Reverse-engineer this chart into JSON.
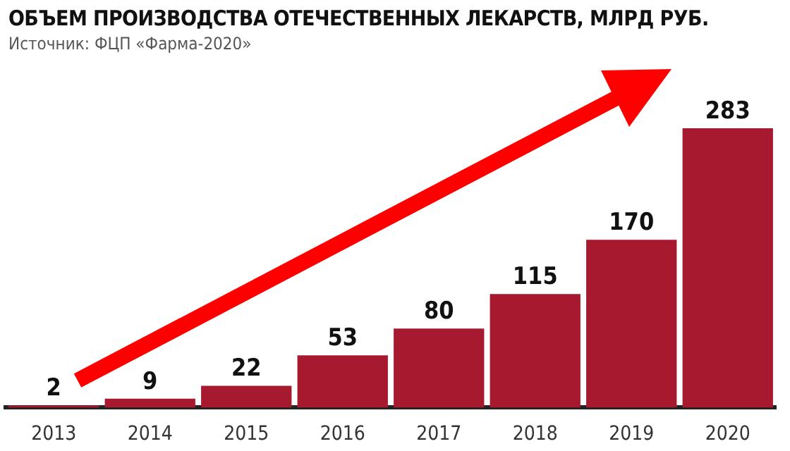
{
  "chart_data": {
    "type": "bar",
    "title": "ОБЪЕМ ПРОИЗВОДСТВА ОТЕЧЕСТВЕННЫХ ЛЕКАРСТВ, МЛРД РУБ.",
    "subtitle": "Источник: ФЦП «Фарма-2020»",
    "categories": [
      "2013",
      "2014",
      "2015",
      "2016",
      "2017",
      "2018",
      "2019",
      "2020"
    ],
    "values": [
      2,
      9,
      22,
      53,
      80,
      115,
      170,
      283
    ],
    "color": "#a6192e",
    "data_labels": true,
    "grid": false,
    "legend": false
  }
}
